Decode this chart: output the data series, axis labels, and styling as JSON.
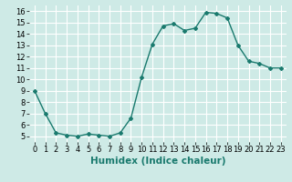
{
  "x": [
    0,
    1,
    2,
    3,
    4,
    5,
    6,
    7,
    8,
    9,
    10,
    11,
    12,
    13,
    14,
    15,
    16,
    17,
    18,
    19,
    20,
    21,
    22,
    23
  ],
  "y": [
    9,
    7,
    5.3,
    5.1,
    5.0,
    5.2,
    5.1,
    5.0,
    5.3,
    6.6,
    10.2,
    13.1,
    14.7,
    14.9,
    14.3,
    14.5,
    15.9,
    15.8,
    15.4,
    13.0,
    11.6,
    11.4,
    11.0,
    11.0
  ],
  "line_color": "#1a7a6e",
  "marker": "D",
  "marker_size": 2,
  "bg_color": "#ceeae6",
  "grid_color": "#ffffff",
  "xlabel": "Humidex (Indice chaleur)",
  "xlabel_fontsize": 7.5,
  "tick_fontsize": 6,
  "xlim": [
    -0.5,
    23.5
  ],
  "ylim": [
    4.5,
    16.5
  ],
  "yticks": [
    5,
    6,
    7,
    8,
    9,
    10,
    11,
    12,
    13,
    14,
    15,
    16
  ],
  "xticks": [
    0,
    1,
    2,
    3,
    4,
    5,
    6,
    7,
    8,
    9,
    10,
    11,
    12,
    13,
    14,
    15,
    16,
    17,
    18,
    19,
    20,
    21,
    22,
    23
  ]
}
